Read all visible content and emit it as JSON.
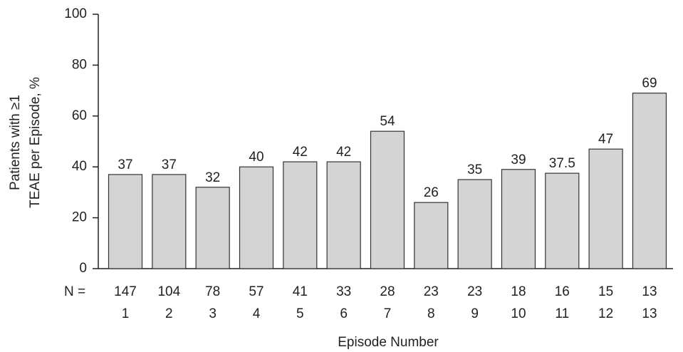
{
  "chart_data": {
    "type": "bar",
    "y_label": [
      "Patients with ≥1",
      "TEAE per Episode, %"
    ],
    "x_label": "Episode Number",
    "n_label": "N =",
    "n_values": [
      147,
      104,
      78,
      57,
      41,
      33,
      28,
      23,
      23,
      18,
      16,
      15,
      13
    ],
    "categories": [
      "1",
      "2",
      "3",
      "4",
      "5",
      "6",
      "7",
      "8",
      "9",
      "10",
      "11",
      "12",
      "13"
    ],
    "values": [
      37,
      37,
      32,
      40,
      42,
      42,
      54,
      26,
      35,
      39,
      37.5,
      47,
      69
    ],
    "color": "#d4d4d4",
    "ylim": [
      0,
      100
    ],
    "yticks": [
      0,
      20,
      40,
      60,
      80,
      100
    ]
  }
}
